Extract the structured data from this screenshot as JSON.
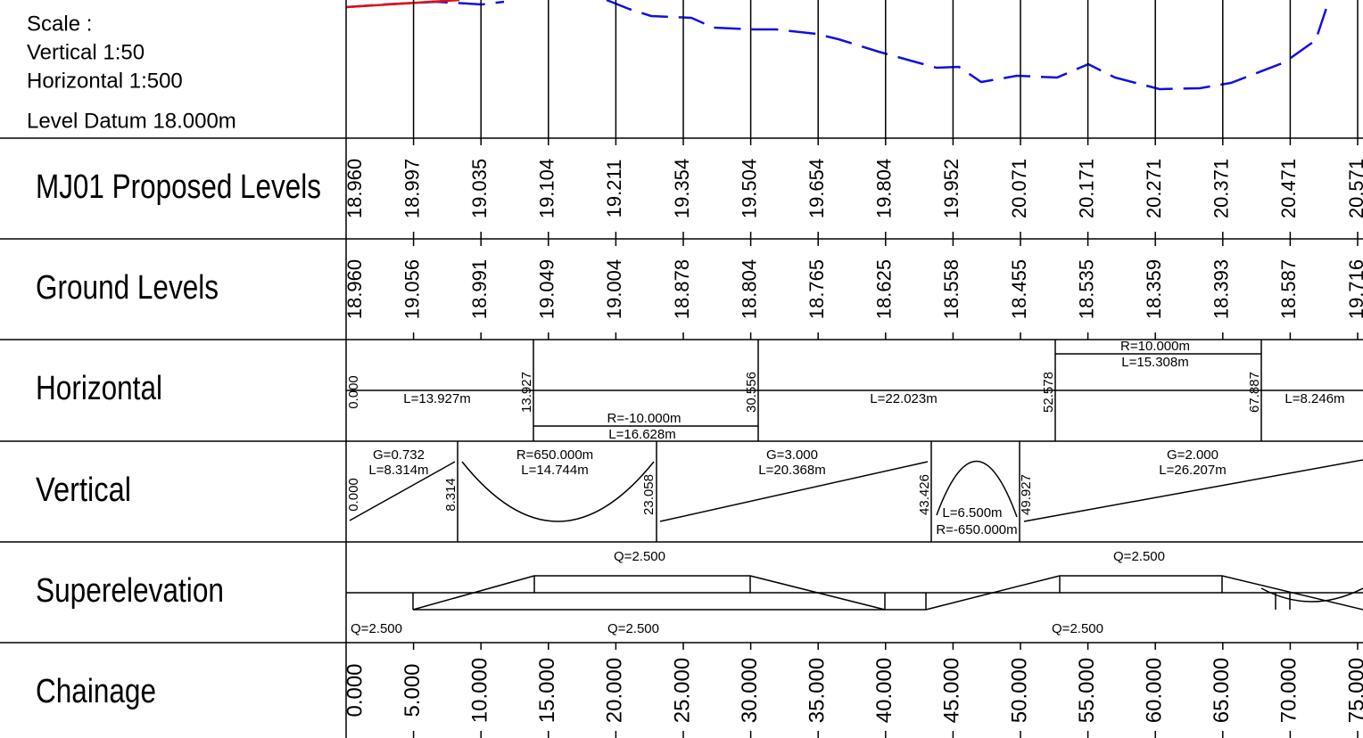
{
  "header": {
    "scale": "Scale :",
    "vertical": "Vertical 1:50",
    "horizontal": "Horizontal 1:500",
    "datum": "Level Datum 18.000m"
  },
  "rows": {
    "proposed": {
      "label": "MJ01 Proposed Levels",
      "values": [
        "18.960",
        "18.997",
        "19.035",
        "19.104",
        "19.211",
        "19.354",
        "19.504",
        "19.654",
        "19.804",
        "19.952",
        "20.071",
        "20.171",
        "20.271",
        "20.371",
        "20.471",
        "20.571"
      ]
    },
    "ground": {
      "label": "Ground Levels",
      "values": [
        "18.960",
        "19.056",
        "18.991",
        "19.049",
        "19.004",
        "18.878",
        "18.804",
        "18.765",
        "18.625",
        "18.558",
        "18.455",
        "18.535",
        "18.359",
        "18.393",
        "18.587",
        "19.716"
      ]
    },
    "horizontal": {
      "label": "Horizontal",
      "annotations": [
        "0.000",
        "L=13.927m",
        "13.927",
        "R=-10.000m",
        "L=16.628m",
        "30.556",
        "L=22.023m",
        "52.578",
        "R=10.000m",
        "L=15.308m",
        "67.887",
        "L=8.246m"
      ]
    },
    "vertical": {
      "label": "Vertical",
      "annotations": [
        "G=0.732",
        "L=8.314m",
        "0.000",
        "8.314",
        "R=650.000m",
        "L=14.744m",
        "23.058",
        "G=3.000",
        "L=20.368m",
        "43.426",
        "L=6.500m",
        "R=-650.000m",
        "49.927",
        "G=2.000",
        "L=26.207m"
      ]
    },
    "superelevation": {
      "label": "Superelevation",
      "annotations": [
        "Q=2.500",
        "Q=2.500",
        "Q=2.500",
        "Q=2.500",
        "Q=2.500"
      ]
    },
    "chainage": {
      "label": "Chainage",
      "values": [
        "0.000",
        "5.000",
        "10.000",
        "15.000",
        "20.000",
        "25.000",
        "30.000",
        "35.000",
        "40.000",
        "45.000",
        "50.000",
        "55.000",
        "60.000",
        "65.000",
        "70.000",
        "75.000"
      ]
    }
  }
}
